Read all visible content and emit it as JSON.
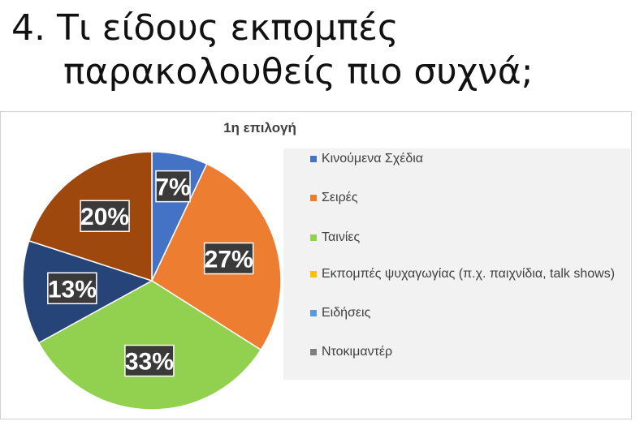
{
  "title": {
    "line1": "4. Τι είδους εκπομπές",
    "line2": "παρακολουθείς πιο συχνά;"
  },
  "chart_data": {
    "type": "pie",
    "title": "1η επιλογή",
    "legend_position": "right",
    "series": [
      {
        "name": "Κινούμενα Σχέδια",
        "value": 7,
        "label": "7%",
        "color": "#4472c4"
      },
      {
        "name": "Σειρές",
        "value": 27,
        "label": "27%",
        "color": "#ed7d31"
      },
      {
        "name": "Ταινίες",
        "value": 33,
        "label": "33%",
        "color": "#92d050"
      },
      {
        "name": "Εκπομπές ψυχαγωγίας (π.χ. παιχνίδια, talk shows)",
        "value": 0,
        "label": "",
        "color": "#ffc000"
      },
      {
        "name": "Ειδήσεις",
        "value": 0,
        "label": "",
        "color": "#5b9bd5"
      },
      {
        "name": "Ντοκιμαντέρ",
        "value": 0,
        "label": "",
        "color": "#7f7f7f"
      },
      {
        "name": "",
        "value": 13,
        "label": "13%",
        "color": "#264478"
      },
      {
        "name": "",
        "value": 20,
        "label": "20%",
        "color": "#9e480e"
      }
    ]
  }
}
